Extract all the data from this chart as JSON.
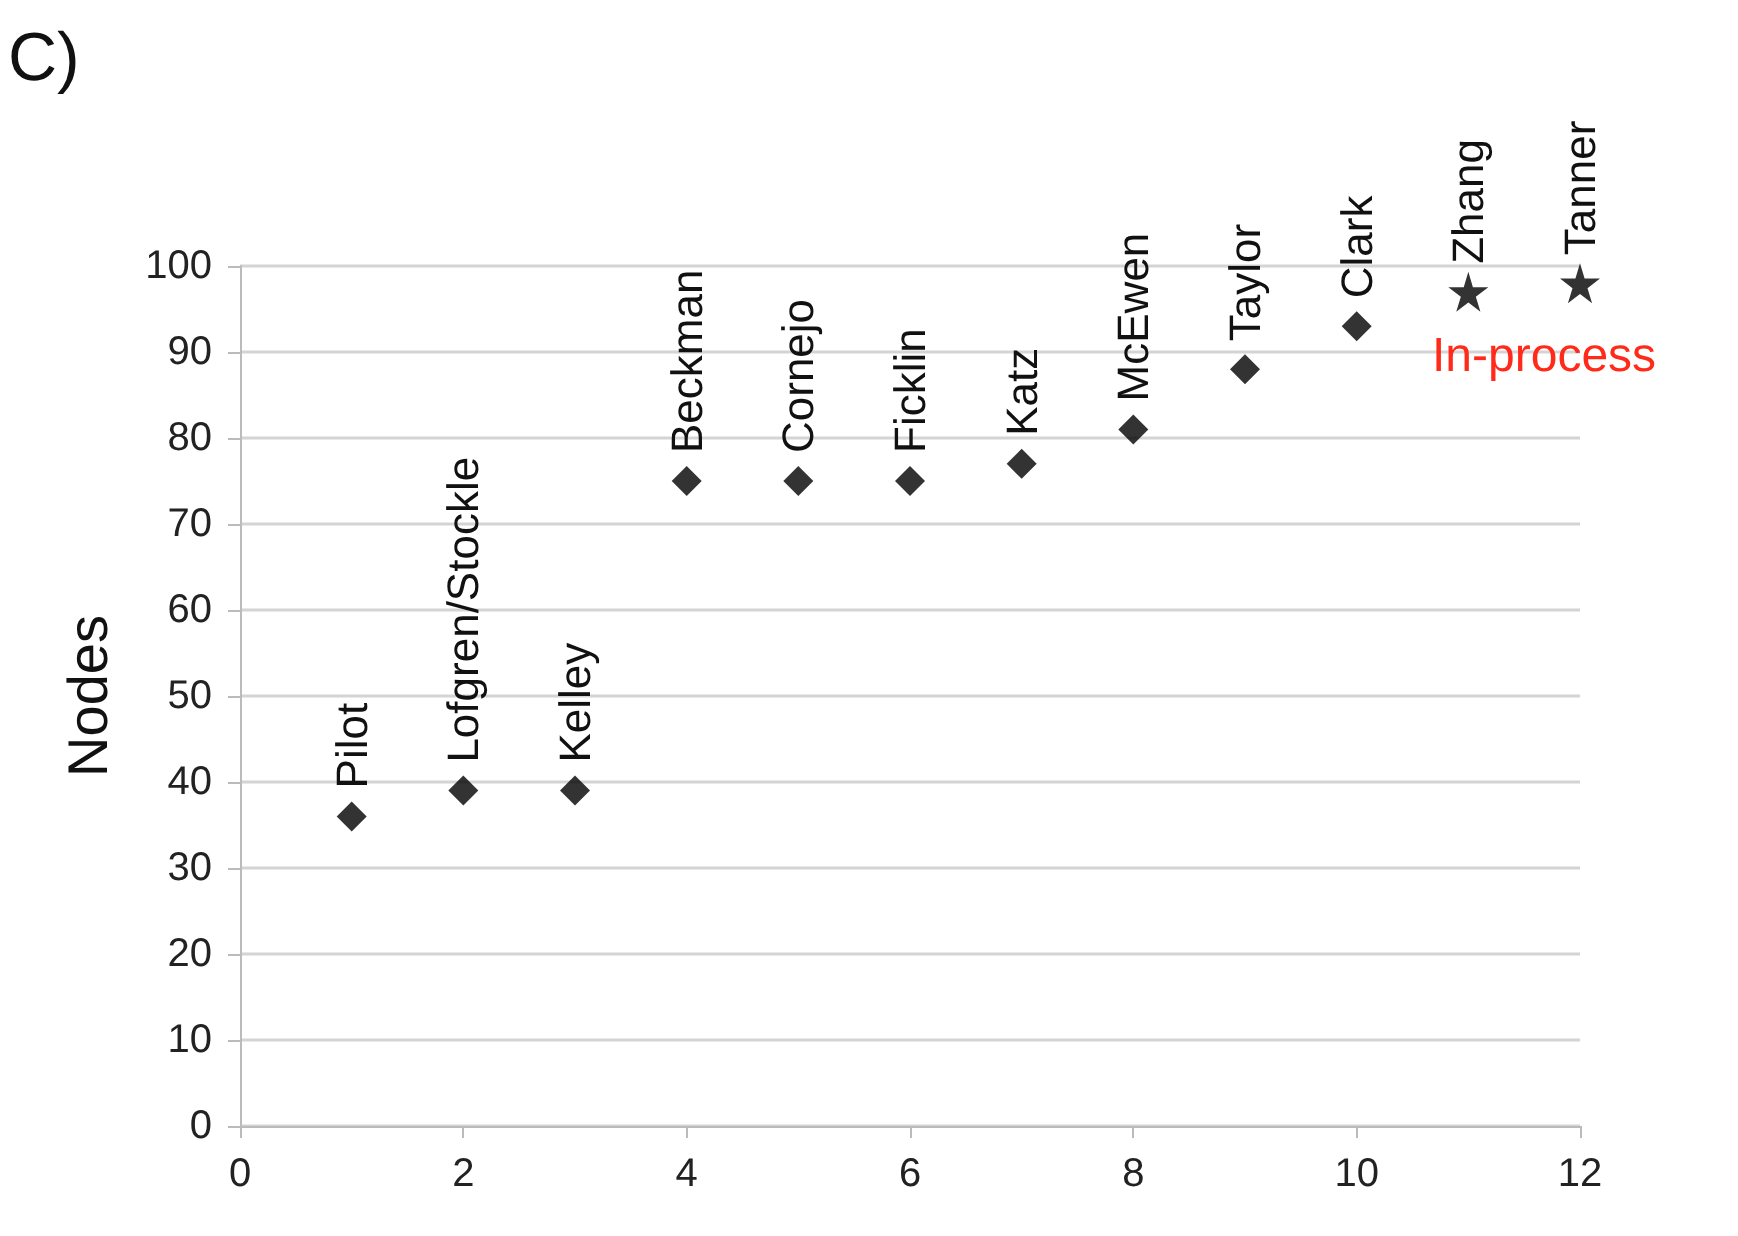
{
  "chart_data": {
    "type": "scatter",
    "ylabel": "Nodes",
    "series": [
      {
        "color": "#000000",
        "marker": "diamond",
        "x": [
          1,
          2,
          3,
          4,
          5,
          6,
          7,
          8,
          9,
          10
        ],
        "values": [
          36,
          39,
          39,
          75,
          75,
          75,
          77,
          81,
          88,
          93
        ]
      },
      {
        "color": "#000000",
        "marker": "star",
        "x": [
          11,
          12
        ],
        "values": [
          97,
          98
        ]
      }
    ],
    "xlim": [
      0,
      12
    ],
    "xticks": [
      0,
      2,
      4,
      6,
      8,
      10,
      12
    ],
    "ylim": [
      0,
      100
    ],
    "yticks": [
      0,
      10,
      20,
      30,
      40,
      50,
      60,
      70,
      80,
      90,
      100
    ],
    "grid": "y",
    "annotations": [
      "C)",
      "In-process",
      {
        "text": "Pilot",
        "x": 1,
        "y": 36
      },
      {
        "text": "Lofgren/Stockle",
        "x": 2,
        "y": 39
      },
      {
        "text": "Kelley",
        "x": 3,
        "y": 39
      },
      {
        "text": "Beckman",
        "x": 4,
        "y": 75
      },
      {
        "text": "Cornejo",
        "x": 5,
        "y": 75
      },
      {
        "text": "Ficklin",
        "x": 6,
        "y": 75
      },
      {
        "text": "Katz",
        "x": 7,
        "y": 77
      },
      {
        "text": "McEwen",
        "x": 8,
        "y": 81
      },
      {
        "text": "Taylor",
        "x": 9,
        "y": 88
      },
      {
        "text": "Clark",
        "x": 10,
        "y": 93
      },
      {
        "text": "Zhang",
        "x": 11,
        "y": 97
      },
      {
        "text": "Tanner",
        "x": 12,
        "y": 98
      }
    ]
  }
}
